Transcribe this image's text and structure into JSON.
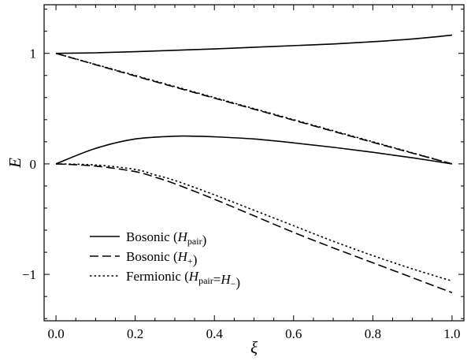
{
  "chart_data": {
    "type": "line",
    "xlabel": "ξ",
    "ylabel": "E",
    "xlim": [
      -0.03,
      1.03
    ],
    "ylim": [
      -1.42,
      1.44
    ],
    "xticks": [
      0.0,
      0.2,
      0.4,
      0.6,
      0.8,
      1.0
    ],
    "xtick_labels": [
      "0.0",
      "0.2",
      "0.4",
      "0.6",
      "0.8",
      "1.0"
    ],
    "yticks": [
      -1,
      0,
      1
    ],
    "ytick_labels": [
      "−1",
      "0",
      "1"
    ],
    "grid": false,
    "legend_position": "bottom-left",
    "series": [
      {
        "name": "Bosonic (H_pair)",
        "style": "solid",
        "color": "#000000",
        "x": [
          0.0,
          0.1,
          0.2,
          0.3,
          0.4,
          0.5,
          0.6,
          0.7,
          0.8,
          0.9,
          1.0
        ],
        "y": [
          1.0,
          1.005,
          1.015,
          1.028,
          1.04,
          1.055,
          1.07,
          1.085,
          1.105,
          1.13,
          1.165
        ]
      },
      {
        "name": "Bosonic (H_pair)",
        "style": "solid",
        "color": "#000000",
        "x": [
          0.0,
          0.1,
          0.2,
          0.3,
          0.35,
          0.4,
          0.5,
          0.6,
          0.7,
          0.8,
          0.9,
          1.0
        ],
        "y": [
          0.0,
          0.14,
          0.225,
          0.25,
          0.25,
          0.245,
          0.225,
          0.19,
          0.15,
          0.105,
          0.055,
          0.0
        ]
      },
      {
        "name": "Bosonic (H_+)",
        "style": "dashed",
        "color": "#000000",
        "x": [
          0.0,
          0.2,
          0.4,
          0.6,
          0.8,
          1.0
        ],
        "y": [
          1.0,
          0.795,
          0.595,
          0.395,
          0.195,
          0.0
        ]
      },
      {
        "name": "Bosonic (H_+)",
        "style": "dashed",
        "color": "#000000",
        "x": [
          0.0,
          0.1,
          0.2,
          0.25,
          0.3,
          0.4,
          0.5,
          0.6,
          0.7,
          0.8,
          0.9,
          1.0
        ],
        "y": [
          0.0,
          -0.02,
          -0.07,
          -0.12,
          -0.18,
          -0.32,
          -0.47,
          -0.62,
          -0.76,
          -0.895,
          -1.03,
          -1.165
        ]
      },
      {
        "name": "Fermionic (H_pair=H_−)",
        "style": "dotted",
        "color": "#000000",
        "x": [
          0.0,
          0.2,
          0.4,
          0.6,
          0.8,
          1.0
        ],
        "y": [
          1.0,
          0.8,
          0.6,
          0.4,
          0.2,
          0.0
        ]
      },
      {
        "name": "Fermionic (H_pair=H_−)",
        "style": "dotted",
        "color": "#000000",
        "x": [
          0.0,
          0.1,
          0.2,
          0.25,
          0.3,
          0.4,
          0.5,
          0.6,
          0.7,
          0.8,
          0.9,
          1.0
        ],
        "y": [
          0.0,
          -0.01,
          -0.05,
          -0.1,
          -0.15,
          -0.28,
          -0.42,
          -0.56,
          -0.7,
          -0.83,
          -0.95,
          -1.06
        ]
      }
    ]
  },
  "legend": {
    "entries": [
      {
        "style": "solid",
        "prefix": "Bosonic (",
        "var": "H",
        "sub": "pair",
        "mid": "",
        "var2": "",
        "sub2": "",
        "suffix": ")"
      },
      {
        "style": "dashed",
        "prefix": "Bosonic (",
        "var": "H",
        "sub": "+",
        "mid": "",
        "var2": "",
        "sub2": "",
        "suffix": ")"
      },
      {
        "style": "dotted",
        "prefix": "Fermionic (",
        "var": "H",
        "sub": "pair",
        "mid": "=",
        "var2": "H",
        "sub2": "−",
        "suffix": ")"
      }
    ]
  }
}
